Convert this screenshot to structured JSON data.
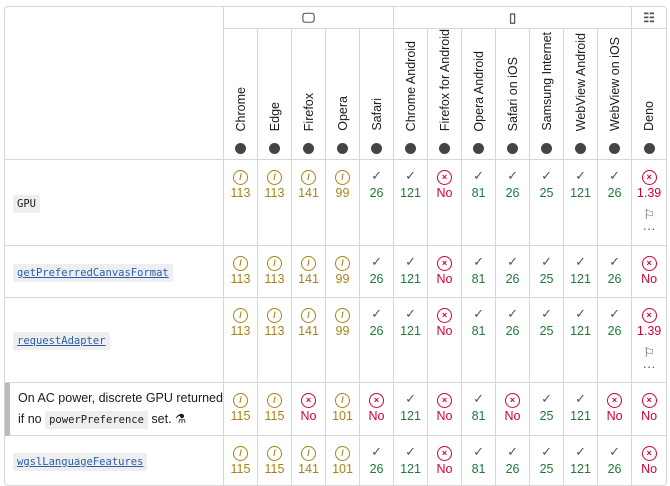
{
  "platforms": [
    {
      "icon": "desktop-icon",
      "glyph": "🖵",
      "span": 5
    },
    {
      "icon": "mobile-icon",
      "glyph": "▯",
      "span": 7
    },
    {
      "icon": "server-icon",
      "glyph": "☷",
      "span": 1
    }
  ],
  "browsers": [
    "Chrome",
    "Edge",
    "Firefox",
    "Opera",
    "Safari",
    "Chrome Android",
    "Firefox for Android",
    "Opera Android",
    "Safari on iOS",
    "Samsung Internet",
    "WebView Android",
    "WebView on iOS",
    "Deno"
  ],
  "colors": {
    "partial": "#a58415",
    "yes": "#1e7a39",
    "no": "#d30038"
  },
  "rows": [
    {
      "label": "GPU",
      "type": "code",
      "cells": [
        [
          "p",
          "113"
        ],
        [
          "p",
          "113"
        ],
        [
          "p",
          "141"
        ],
        [
          "p",
          "99"
        ],
        [
          "y",
          "26"
        ],
        [
          "y",
          "121"
        ],
        [
          "n",
          "No"
        ],
        [
          "y",
          "81"
        ],
        [
          "y",
          "26"
        ],
        [
          "y",
          "25"
        ],
        [
          "y",
          "121"
        ],
        [
          "y",
          "26"
        ],
        [
          "n",
          "1.39",
          "flag"
        ]
      ]
    },
    {
      "label": "getPreferredCanvasFormat",
      "type": "link",
      "cells": [
        [
          "p",
          "113"
        ],
        [
          "p",
          "113"
        ],
        [
          "p",
          "141"
        ],
        [
          "p",
          "99"
        ],
        [
          "y",
          "26"
        ],
        [
          "y",
          "121"
        ],
        [
          "n",
          "No"
        ],
        [
          "y",
          "81"
        ],
        [
          "y",
          "26"
        ],
        [
          "y",
          "25"
        ],
        [
          "y",
          "121"
        ],
        [
          "y",
          "26"
        ],
        [
          "n",
          "No"
        ]
      ]
    },
    {
      "label": "requestAdapter",
      "type": "link",
      "cells": [
        [
          "p",
          "113"
        ],
        [
          "p",
          "113"
        ],
        [
          "p",
          "141"
        ],
        [
          "p",
          "99"
        ],
        [
          "y",
          "26"
        ],
        [
          "y",
          "121"
        ],
        [
          "n",
          "No"
        ],
        [
          "y",
          "81"
        ],
        [
          "y",
          "26"
        ],
        [
          "y",
          "25"
        ],
        [
          "y",
          "121"
        ],
        [
          "y",
          "26"
        ],
        [
          "n",
          "1.39",
          "flag"
        ]
      ]
    },
    {
      "label_pre": "On AC power, discrete GPU returned if no ",
      "label_code": "powerPreference",
      "label_post": " set.",
      "type": "sub",
      "cells": [
        [
          "p",
          "115"
        ],
        [
          "p",
          "115"
        ],
        [
          "n",
          "No"
        ],
        [
          "p",
          "101"
        ],
        [
          "n",
          "No"
        ],
        [
          "y",
          "121"
        ],
        [
          "n",
          "No"
        ],
        [
          "y",
          "81"
        ],
        [
          "n",
          "No"
        ],
        [
          "y",
          "25"
        ],
        [
          "y",
          "121"
        ],
        [
          "n",
          "No"
        ],
        [
          "n",
          "No"
        ]
      ]
    },
    {
      "label": "wgslLanguageFeatures",
      "type": "link",
      "cells": [
        [
          "p",
          "115"
        ],
        [
          "p",
          "115"
        ],
        [
          "p",
          "141"
        ],
        [
          "p",
          "101"
        ],
        [
          "y",
          "26"
        ],
        [
          "y",
          "121"
        ],
        [
          "n",
          "No"
        ],
        [
          "y",
          "81"
        ],
        [
          "y",
          "26"
        ],
        [
          "y",
          "25"
        ],
        [
          "y",
          "121"
        ],
        [
          "y",
          "26"
        ],
        [
          "n",
          "No"
        ]
      ]
    }
  ],
  "row_heights": [
    86,
    52,
    85,
    53,
    49
  ]
}
